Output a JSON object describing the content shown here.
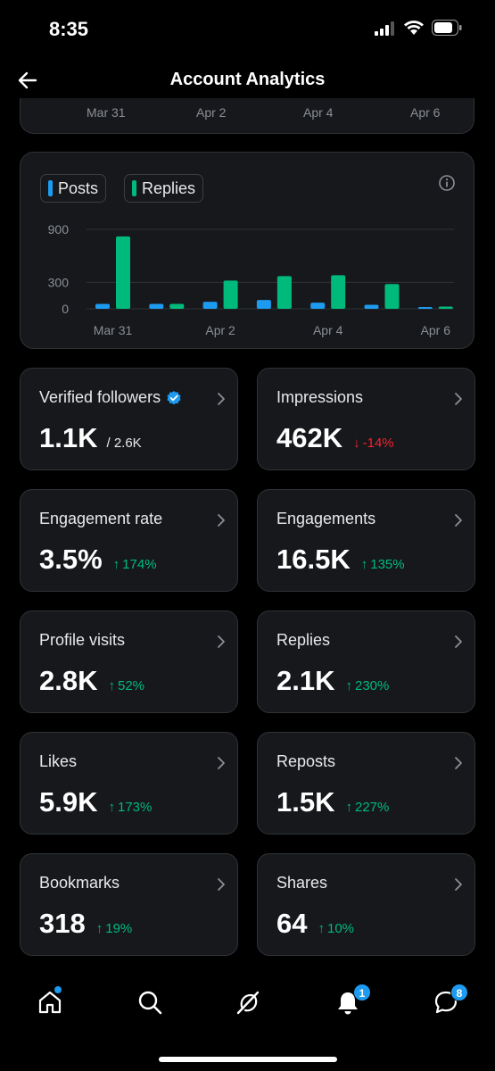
{
  "status_bar": {
    "time": "8:35"
  },
  "header": {
    "title": "Account Analytics"
  },
  "top_axis_ticks": [
    "Mar 31",
    "Apr 2",
    "Apr 4",
    "Apr 6"
  ],
  "legend": {
    "posts": "Posts",
    "replies": "Replies"
  },
  "colors": {
    "posts": "#1d9bf0",
    "replies": "#00ba7c",
    "up": "#00ba7c",
    "down": "#f4212e"
  },
  "chart_data": {
    "type": "bar",
    "categories": [
      "Mar 31",
      "Apr 1",
      "Apr 2",
      "Apr 3",
      "Apr 4",
      "Apr 5",
      "Apr 6"
    ],
    "x_tick_labels": [
      "Mar 31",
      "Apr 2",
      "Apr 4",
      "Apr 6"
    ],
    "y_ticks": [
      0,
      300,
      900
    ],
    "ylim": [
      0,
      900
    ],
    "series": [
      {
        "name": "Posts",
        "values": [
          55,
          55,
          80,
          100,
          70,
          45,
          10
        ]
      },
      {
        "name": "Replies",
        "values": [
          820,
          55,
          320,
          370,
          380,
          280,
          25
        ]
      }
    ],
    "grid": true
  },
  "metrics": [
    {
      "label": "Verified followers",
      "value": "1.1K",
      "sub": "/ 2.6K"
    },
    {
      "label": "Impressions",
      "value": "462K",
      "delta": "-14%",
      "dir": "down"
    },
    {
      "label": "Engagement rate",
      "value": "3.5%",
      "delta": "174%",
      "dir": "up"
    },
    {
      "label": "Engagements",
      "value": "16.5K",
      "delta": "135%",
      "dir": "up"
    },
    {
      "label": "Profile visits",
      "value": "2.8K",
      "delta": "52%",
      "dir": "up"
    },
    {
      "label": "Replies",
      "value": "2.1K",
      "delta": "230%",
      "dir": "up"
    },
    {
      "label": "Likes",
      "value": "5.9K",
      "delta": "173%",
      "dir": "up"
    },
    {
      "label": "Reposts",
      "value": "1.5K",
      "delta": "227%",
      "dir": "up"
    },
    {
      "label": "Bookmarks",
      "value": "318",
      "delta": "19%",
      "dir": "up"
    },
    {
      "label": "Shares",
      "value": "64",
      "delta": "10%",
      "dir": "up"
    }
  ],
  "nav": {
    "notifications_badge": "1",
    "messages_badge": "8"
  }
}
